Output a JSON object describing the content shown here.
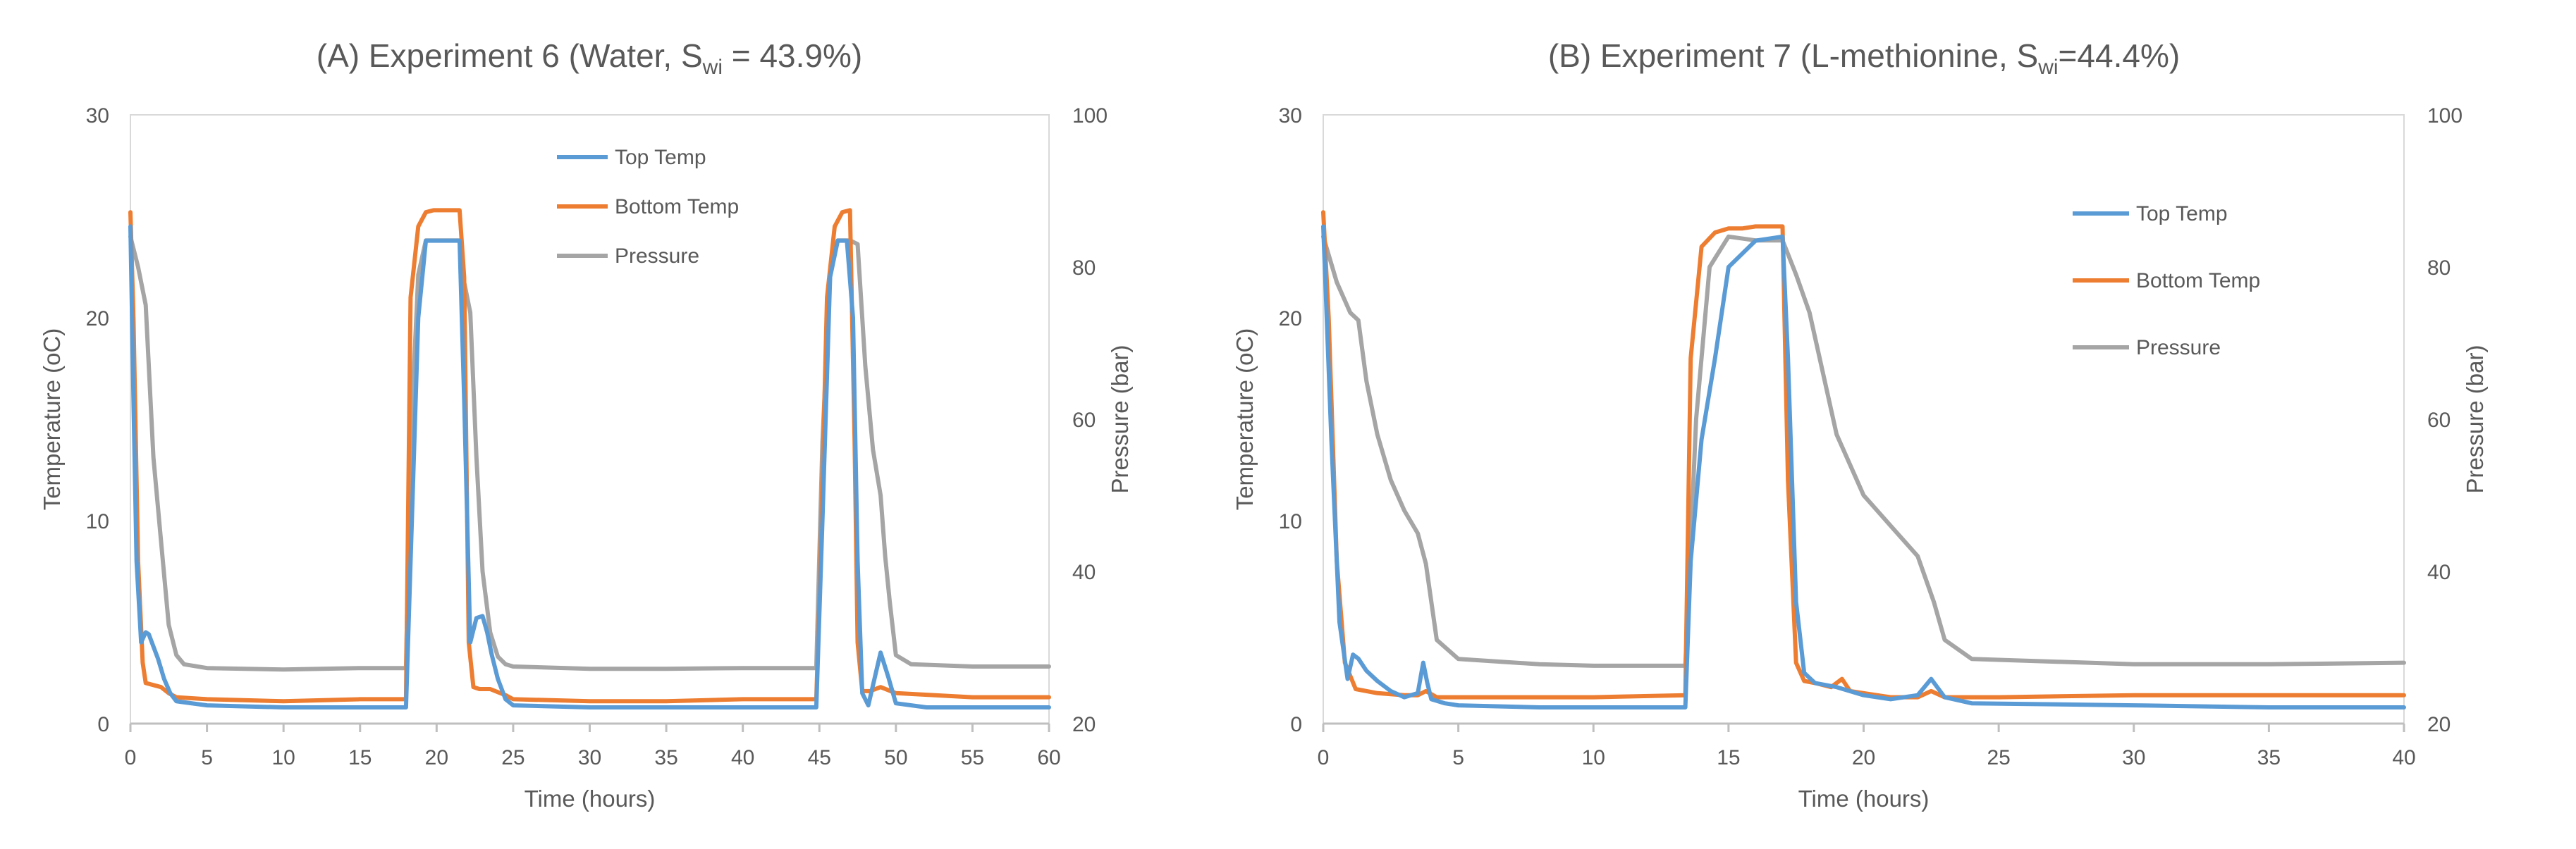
{
  "colors": {
    "top_temp": "#5B9BD5",
    "bottom_temp": "#ED7D31",
    "pressure": "#A5A5A5",
    "axis": "#BFBFBF",
    "text": "#595959",
    "frame": "#D9D9D9"
  },
  "chart_data": [
    {
      "type": "line",
      "title": "(A) Experiment 6 (Water, S",
      "title_sub": "wi",
      "title_tail": " = 43.9%)",
      "xlabel": "Time (hours)",
      "ylabel": "Temperature (oC)",
      "y2label": "Pressure (bar)",
      "xlim": [
        0,
        60
      ],
      "ylim": [
        0,
        30
      ],
      "y2lim": [
        20,
        100
      ],
      "xticks": [
        "0",
        "5",
        "10",
        "15",
        "20",
        "25",
        "30",
        "35",
        "40",
        "45",
        "50",
        "55",
        "60"
      ],
      "yticks": [
        "0",
        "10",
        "20",
        "30"
      ],
      "y2ticks": [
        "20",
        "40",
        "60",
        "80",
        "100"
      ],
      "legend": [
        "Top Temp",
        "Bottom Temp",
        "Pressure"
      ],
      "legend_position": "top-center",
      "series": [
        {
          "name": "Top Temp",
          "axis": "left",
          "x": [
            0,
            0.2,
            0.4,
            0.7,
            1.0,
            1.2,
            1.5,
            1.8,
            2.2,
            2.6,
            3,
            5,
            10,
            15,
            18,
            18.3,
            18.8,
            19.3,
            20,
            21,
            21.5,
            21.8,
            22.2,
            22.6,
            23,
            23.3,
            23.6,
            24,
            24.5,
            25,
            30,
            35,
            40,
            44.8,
            45.2,
            45.7,
            46.2,
            46.8,
            47.2,
            47.5,
            47.8,
            48.2,
            48.6,
            49,
            49.5,
            50,
            52,
            55,
            60
          ],
          "values": [
            24.5,
            16,
            8,
            4,
            4.5,
            4.4,
            3.8,
            3.2,
            2.2,
            1.5,
            1.1,
            0.9,
            0.8,
            0.8,
            0.8,
            8,
            20,
            23.8,
            23.8,
            23.8,
            23.8,
            16,
            4,
            5.2,
            5.3,
            4.5,
            3.4,
            2.2,
            1.2,
            0.9,
            0.8,
            0.8,
            0.8,
            0.8,
            10,
            22,
            23.8,
            23.8,
            20,
            8,
            1.5,
            0.9,
            2.2,
            3.5,
            2.3,
            1.0,
            0.8,
            0.8,
            0.8
          ]
        },
        {
          "name": "Bottom Temp",
          "axis": "left",
          "x": [
            0,
            0.2,
            0.5,
            0.8,
            1,
            1.5,
            2,
            2.5,
            3,
            5,
            10,
            15,
            18,
            18.3,
            18.8,
            19.3,
            19.8,
            20.5,
            21,
            21.5,
            21.8,
            22.1,
            22.4,
            22.8,
            23.5,
            24.5,
            25,
            30,
            35,
            40,
            44.8,
            45,
            45.5,
            46,
            46.5,
            47,
            47.3,
            47.5,
            47.8,
            48.3,
            49,
            50,
            55,
            60
          ],
          "values": [
            25.2,
            20,
            8,
            3,
            2,
            1.9,
            1.8,
            1.5,
            1.3,
            1.2,
            1.1,
            1.2,
            1.2,
            21,
            24.5,
            25.2,
            25.3,
            25.3,
            25.3,
            25.3,
            22,
            4,
            1.8,
            1.7,
            1.7,
            1.4,
            1.2,
            1.1,
            1.1,
            1.2,
            1.2,
            6,
            21,
            24.5,
            25.2,
            25.3,
            14,
            4,
            1.6,
            1.6,
            1.8,
            1.5,
            1.3,
            1.3
          ]
        },
        {
          "name": "Pressure",
          "axis": "right",
          "x": [
            0,
            0.5,
            1.0,
            1.5,
            2,
            2.5,
            3,
            3.5,
            5,
            10,
            15,
            18,
            18.3,
            18.8,
            19.3,
            19.8,
            21,
            21.5,
            21.8,
            22.2,
            22.6,
            23,
            23.5,
            24,
            24.5,
            25,
            30,
            35,
            40,
            44.8,
            45.2,
            45.7,
            46.2,
            47,
            47.5,
            48,
            48.5,
            49,
            49.3,
            49.6,
            50,
            51,
            55,
            60
          ],
          "values": [
            84,
            80,
            75,
            55,
            44,
            33,
            29,
            27.8,
            27.3,
            27.1,
            27.3,
            27.3,
            57,
            79,
            83.5,
            83.5,
            83.5,
            83.5,
            78,
            74,
            55,
            40,
            32,
            28.8,
            27.8,
            27.5,
            27.2,
            27.2,
            27.3,
            27.3,
            57,
            79,
            83.5,
            83.5,
            83,
            67,
            56,
            50,
            42,
            36,
            29,
            27.8,
            27.5,
            27.5
          ]
        }
      ]
    },
    {
      "type": "line",
      "title": "(B) Experiment 7 (L-methionine, S",
      "title_sub": "wi",
      "title_tail": "=44.4%)",
      "xlabel": "Time (hours)",
      "ylabel": "Temperature (oC)",
      "y2label": "Pressure (bar)",
      "xlim": [
        0,
        40
      ],
      "ylim": [
        0,
        30
      ],
      "y2lim": [
        20,
        100
      ],
      "xticks": [
        "0",
        "5",
        "10",
        "15",
        "20",
        "25",
        "30",
        "35",
        "40"
      ],
      "yticks": [
        "0",
        "10",
        "20",
        "30"
      ],
      "y2ticks": [
        "20",
        "40",
        "60",
        "80",
        "100"
      ],
      "legend": [
        "Top Temp",
        "Bottom Temp",
        "Pressure"
      ],
      "legend_position": "top-right",
      "series": [
        {
          "name": "Top Temp",
          "axis": "left",
          "x": [
            0,
            0.3,
            0.6,
            0.9,
            1.1,
            1.3,
            1.6,
            2,
            2.5,
            3,
            3.5,
            3.7,
            3.85,
            4,
            4.5,
            5,
            8,
            10,
            13.4,
            13.6,
            14,
            14.5,
            15,
            16,
            17,
            17.2,
            17.5,
            17.8,
            18.2,
            19,
            20,
            21,
            22,
            22.5,
            23,
            24,
            30,
            35,
            40
          ],
          "values": [
            24.5,
            14,
            5,
            2.2,
            3.4,
            3.2,
            2.6,
            2.1,
            1.6,
            1.3,
            1.5,
            3.0,
            2.0,
            1.2,
            1.0,
            0.9,
            0.8,
            0.8,
            0.8,
            8,
            14,
            18,
            22.5,
            23.8,
            24,
            18,
            6,
            2.5,
            2.0,
            1.8,
            1.4,
            1.2,
            1.4,
            2.2,
            1.3,
            1.0,
            0.9,
            0.8,
            0.8
          ]
        },
        {
          "name": "Bottom Temp",
          "axis": "left",
          "x": [
            0,
            0.2,
            0.5,
            0.8,
            1.2,
            2,
            3,
            3.5,
            3.8,
            4.2,
            5,
            8,
            10,
            13.4,
            13.6,
            14,
            14.5,
            15,
            15.5,
            16,
            17,
            17.2,
            17.5,
            17.8,
            18.2,
            18.8,
            19.2,
            19.5,
            20,
            21,
            22,
            22.5,
            23,
            25,
            30,
            35,
            40
          ],
          "values": [
            25.2,
            20,
            8,
            3,
            1.7,
            1.5,
            1.4,
            1.4,
            1.6,
            1.3,
            1.3,
            1.3,
            1.3,
            1.4,
            18,
            23.5,
            24.2,
            24.4,
            24.4,
            24.5,
            24.5,
            12,
            3,
            2.1,
            2.0,
            1.8,
            2.2,
            1.6,
            1.5,
            1.3,
            1.3,
            1.6,
            1.3,
            1.3,
            1.4,
            1.4,
            1.4
          ]
        },
        {
          "name": "Pressure",
          "axis": "right",
          "x": [
            0,
            0.5,
            1,
            1.3,
            1.6,
            2,
            2.5,
            3,
            3.5,
            3.8,
            4.2,
            5,
            8,
            10,
            13.4,
            13.8,
            14.3,
            15,
            16,
            17,
            17.5,
            18,
            19,
            20,
            21,
            22,
            22.6,
            23,
            24,
            30,
            35,
            40
          ],
          "values": [
            84,
            78,
            74,
            73,
            65,
            58,
            52,
            48,
            45,
            41,
            31,
            28.5,
            27.8,
            27.6,
            27.6,
            60,
            80,
            84,
            83.5,
            83.5,
            79,
            74,
            58,
            50,
            46,
            42,
            36,
            31,
            28.5,
            27.8,
            27.8,
            28
          ]
        }
      ]
    }
  ]
}
